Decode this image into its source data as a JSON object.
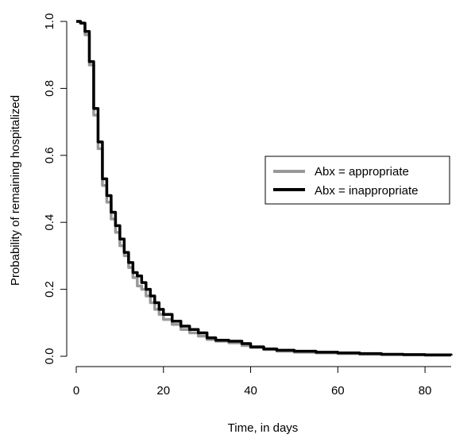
{
  "chart_data": {
    "type": "line",
    "title": "",
    "xlabel": "Time, in days",
    "ylabel": "Probability of remaining hospitalized",
    "xlim": [
      0,
      86
    ],
    "ylim": [
      0,
      1
    ],
    "x_ticks": [
      "0",
      "20",
      "40",
      "60",
      "80"
    ],
    "y_ticks": [
      "0.0",
      "0.2",
      "0.4",
      "0.6",
      "0.8",
      "1.0"
    ],
    "grid": false,
    "legend_position": "right",
    "series": [
      {
        "name": "Abx = appropriate",
        "color": "#999999",
        "x": [
          0,
          1,
          2,
          3,
          4,
          5,
          6,
          7,
          8,
          9,
          10,
          11,
          12,
          13,
          14,
          15,
          16,
          17,
          18,
          19,
          20,
          22,
          24,
          26,
          28,
          30,
          32,
          35,
          38,
          40,
          43,
          46,
          50,
          55,
          60,
          65,
          70,
          75,
          80,
          86
        ],
        "y": [
          1.0,
          0.995,
          0.96,
          0.87,
          0.72,
          0.62,
          0.51,
          0.46,
          0.41,
          0.37,
          0.33,
          0.3,
          0.265,
          0.235,
          0.21,
          0.2,
          0.18,
          0.16,
          0.14,
          0.125,
          0.11,
          0.095,
          0.08,
          0.07,
          0.06,
          0.05,
          0.045,
          0.04,
          0.032,
          0.026,
          0.02,
          0.015,
          0.012,
          0.01,
          0.008,
          0.006,
          0.005,
          0.004,
          0.003,
          0.002
        ]
      },
      {
        "name": "Abx = inappropriate",
        "color": "#000000",
        "x": [
          0,
          1,
          2,
          3,
          4,
          5,
          6,
          7,
          8,
          9,
          10,
          11,
          12,
          13,
          14,
          15,
          16,
          17,
          18,
          19,
          20,
          22,
          24,
          26,
          28,
          30,
          32,
          35,
          38,
          40,
          43,
          46,
          50,
          55,
          60,
          65,
          70,
          75,
          80,
          86
        ],
        "y": [
          1.0,
          0.995,
          0.97,
          0.88,
          0.74,
          0.64,
          0.53,
          0.48,
          0.43,
          0.39,
          0.35,
          0.31,
          0.28,
          0.25,
          0.24,
          0.22,
          0.2,
          0.18,
          0.16,
          0.14,
          0.125,
          0.105,
          0.09,
          0.08,
          0.07,
          0.055,
          0.048,
          0.045,
          0.038,
          0.028,
          0.022,
          0.018,
          0.015,
          0.012,
          0.01,
          0.008,
          0.006,
          0.005,
          0.004,
          0.003
        ]
      }
    ]
  }
}
